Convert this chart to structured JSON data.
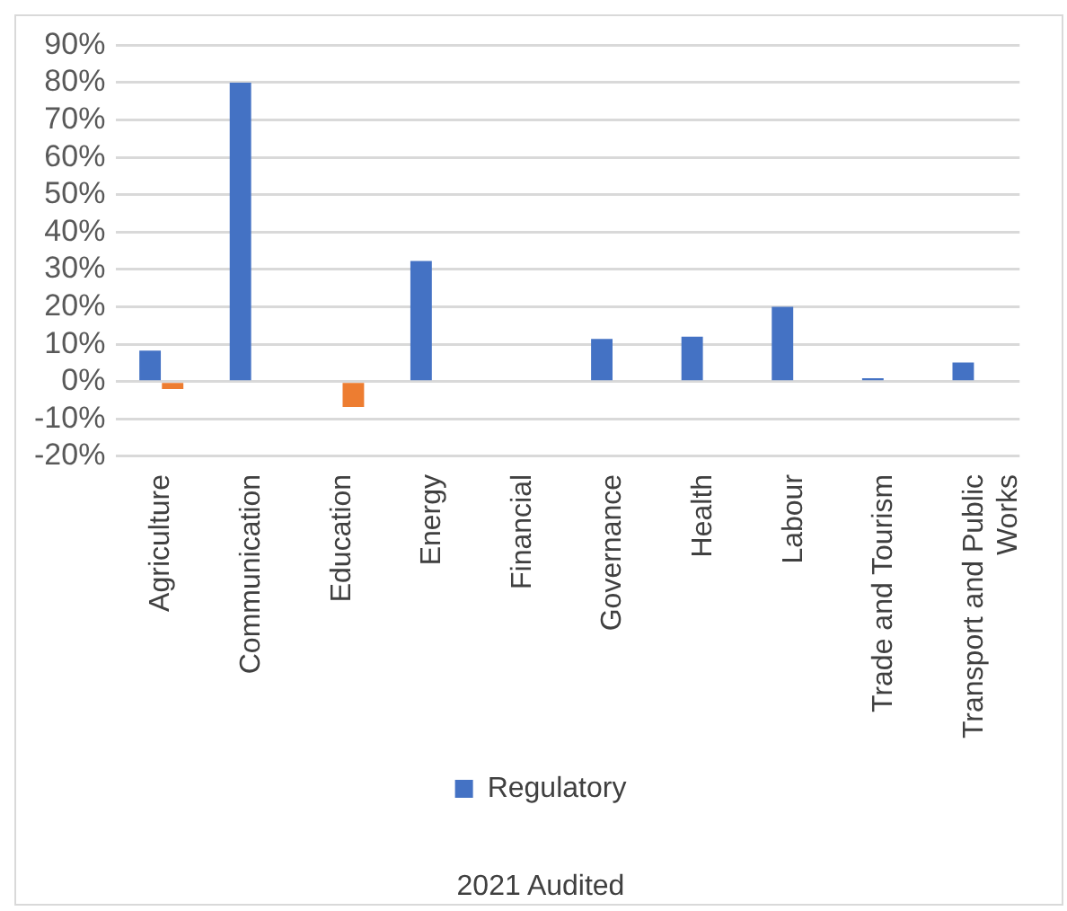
{
  "chart_data": {
    "type": "bar",
    "categories": [
      "Agriculture",
      "Communication",
      "Education",
      "Energy",
      "Financial",
      "Governance",
      "Health",
      "Labour",
      "Trade and Tourism",
      "Transport and Public Works"
    ],
    "series": [
      {
        "name": "Regulatory",
        "color": "#4472c4",
        "values": [
          8.3,
          80,
          null,
          32.3,
          null,
          11.4,
          12,
          20,
          0.9,
          5.1
        ]
      },
      {
        "color": "#ed7d31",
        "values": [
          -2,
          null,
          -6.8,
          null,
          null,
          null,
          null,
          null,
          null,
          null
        ]
      }
    ],
    "xlabel": "2021 Audited",
    "ylim": [
      -20,
      90
    ],
    "yticks": [
      {
        "value": -20,
        "label": "-20%"
      },
      {
        "value": -10,
        "label": "-10%"
      },
      {
        "value": 0,
        "label": "0%"
      },
      {
        "value": 10,
        "label": "10%"
      },
      {
        "value": 20,
        "label": "20%"
      },
      {
        "value": 30,
        "label": "30%"
      },
      {
        "value": 40,
        "label": "40%"
      },
      {
        "value": 50,
        "label": "50%"
      },
      {
        "value": 60,
        "label": "60%"
      },
      {
        "value": 70,
        "label": "70%"
      },
      {
        "value": 80,
        "label": "80%"
      },
      {
        "value": 90,
        "label": "90%"
      }
    ],
    "grid": "y",
    "legend": "bottom"
  }
}
